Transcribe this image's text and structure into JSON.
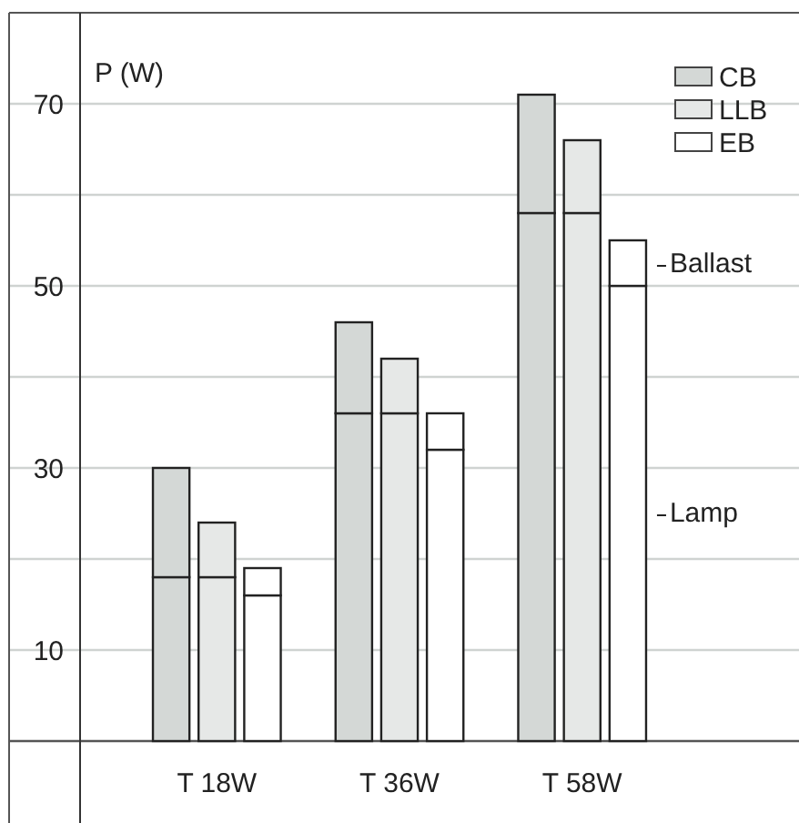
{
  "chart_data": {
    "type": "bar",
    "ylabel": "P (W)",
    "categories": [
      null,
      "T 18W",
      null,
      null,
      null,
      "T 36W",
      null,
      null,
      null,
      "T 58W",
      null
    ],
    "series": [
      {
        "name": "CB",
        "color": "#d4d8d6",
        "values": [
          18,
          null,
          null,
          null,
          36,
          null,
          null,
          null,
          58,
          null,
          null
        ]
      },
      {
        "color": "#d4d8d6",
        "values": [
          12,
          null,
          null,
          null,
          10,
          null,
          null,
          null,
          13,
          null,
          null
        ]
      },
      {
        "name": "LLB",
        "color": "#e6e8e7",
        "values": [
          null,
          18,
          null,
          null,
          null,
          36,
          null,
          null,
          null,
          58,
          null
        ]
      },
      {
        "color": "#e6e8e7",
        "values": [
          null,
          6,
          null,
          null,
          null,
          6,
          null,
          null,
          null,
          8,
          null
        ]
      },
      {
        "name": "EB",
        "color": "#ffffff",
        "values": [
          null,
          null,
          16,
          null,
          null,
          null,
          32,
          null,
          null,
          null,
          50
        ]
      },
      {
        "color": "#ffffff",
        "values": [
          null,
          null,
          3,
          null,
          null,
          null,
          4,
          null,
          null,
          null,
          5
        ]
      }
    ],
    "stacked": true,
    "ylim": [
      0,
      80
    ],
    "yticks": [
      {
        "value": 0,
        "label": null
      },
      10,
      {
        "value": 20,
        "label": null
      },
      30,
      {
        "value": 40,
        "label": null
      },
      50,
      {
        "value": 60,
        "label": null
      },
      70
    ],
    "grid": "y",
    "legend": "top right",
    "annotations": [
      "Ballast",
      "Lamp"
    ]
  }
}
